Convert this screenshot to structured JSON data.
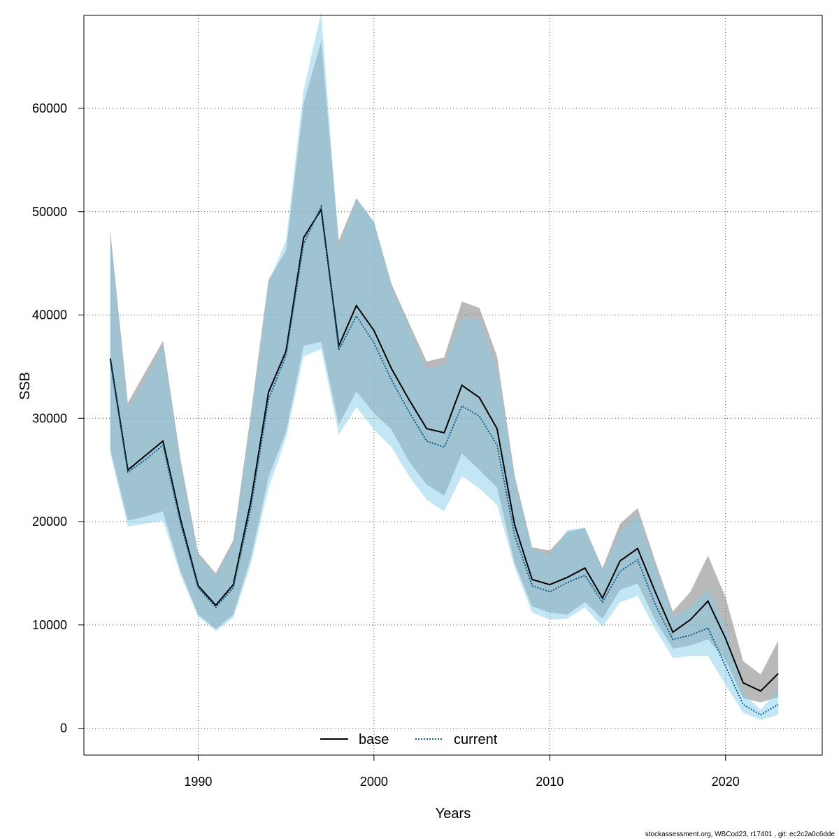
{
  "chart_data": {
    "type": "line",
    "xlabel": "Years",
    "ylabel": "SSB",
    "xlim": [
      1983.5,
      2025.5
    ],
    "ylim": [
      -2600,
      69000
    ],
    "x_ticks": [
      1990,
      2000,
      2010,
      2020
    ],
    "y_ticks": [
      0,
      10000,
      20000,
      30000,
      40000,
      50000,
      60000
    ],
    "grid": true,
    "legend_position": "bottom-center",
    "x": [
      1985,
      1986,
      1987,
      1988,
      1989,
      1990,
      1991,
      1992,
      1993,
      1994,
      1995,
      1996,
      1997,
      1998,
      1999,
      2000,
      2001,
      2002,
      2003,
      2004,
      2005,
      2006,
      2007,
      2008,
      2009,
      2010,
      2011,
      2012,
      2013,
      2014,
      2015,
      2016,
      2017,
      2018,
      2019,
      2020,
      2021,
      2022,
      2023
    ],
    "series": [
      {
        "name": "base",
        "color": "#000000",
        "band_color": "#7f7f7f",
        "values": [
          35800,
          25000,
          26400,
          27800,
          20200,
          13800,
          11900,
          13900,
          22000,
          32500,
          36500,
          47500,
          50200,
          37000,
          40900,
          38500,
          34800,
          31800,
          29000,
          28600,
          33200,
          32000,
          29000,
          19700,
          14400,
          13900,
          14600,
          15500,
          12600,
          16200,
          17400,
          13200,
          9300,
          10500,
          12300,
          8700,
          4400,
          3600,
          5300
        ],
        "lower": [
          27000,
          20100,
          20500,
          21000,
          15200,
          11000,
          9600,
          11000,
          16500,
          24300,
          28700,
          37000,
          37400,
          29400,
          32600,
          30500,
          28900,
          25800,
          23600,
          22500,
          26600,
          25000,
          23300,
          16000,
          11800,
          11200,
          11000,
          12200,
          10600,
          13400,
          14000,
          10500,
          7700,
          8000,
          8600,
          6600,
          2900,
          2500,
          3000
        ],
        "upper": [
          48200,
          31500,
          34500,
          37500,
          26000,
          17000,
          15000,
          18200,
          30500,
          43400,
          46200,
          60500,
          66500,
          47200,
          51300,
          49000,
          43000,
          39200,
          35500,
          35900,
          41300,
          40700,
          36000,
          24500,
          17500,
          17200,
          19000,
          19400,
          15500,
          19800,
          21300,
          16200,
          11300,
          13200,
          16700,
          12700,
          6500,
          5200,
          8500
        ]
      },
      {
        "name": "current",
        "color": "#0b5c8a",
        "band_color": "#87ceeb",
        "values": [
          35600,
          24800,
          26000,
          27400,
          19800,
          13600,
          11700,
          13600,
          21400,
          31800,
          36100,
          46900,
          50500,
          36600,
          39900,
          37300,
          33700,
          30600,
          27800,
          27200,
          31200,
          30200,
          27400,
          18700,
          13800,
          13200,
          14100,
          14800,
          12200,
          15200,
          16300,
          12000,
          8600,
          9000,
          9700,
          6000,
          2300,
          1300,
          2300
        ],
        "lower": [
          26600,
          19500,
          19800,
          20100,
          14800,
          10800,
          9400,
          10700,
          15900,
          23200,
          28100,
          36000,
          36700,
          28400,
          31100,
          28900,
          27200,
          24400,
          22100,
          21000,
          24400,
          23200,
          21600,
          15600,
          11200,
          10500,
          10600,
          11700,
          9800,
          12200,
          12800,
          9600,
          6800,
          7000,
          7000,
          4200,
          1500,
          800,
          1300
        ],
        "upper": [
          47400,
          30900,
          33800,
          37000,
          25400,
          16700,
          14700,
          17900,
          30000,
          43200,
          47200,
          61800,
          69300,
          46600,
          51300,
          49000,
          42600,
          38900,
          34800,
          35200,
          39800,
          39500,
          34800,
          24100,
          17400,
          16800,
          19200,
          19400,
          15200,
          19000,
          20600,
          15600,
          10800,
          11800,
          13500,
          9900,
          3400,
          1800,
          3700
        ]
      }
    ]
  },
  "footer": "stockassessment.org, WBCod23, r17401 , git: ec2c2a0c6dde"
}
